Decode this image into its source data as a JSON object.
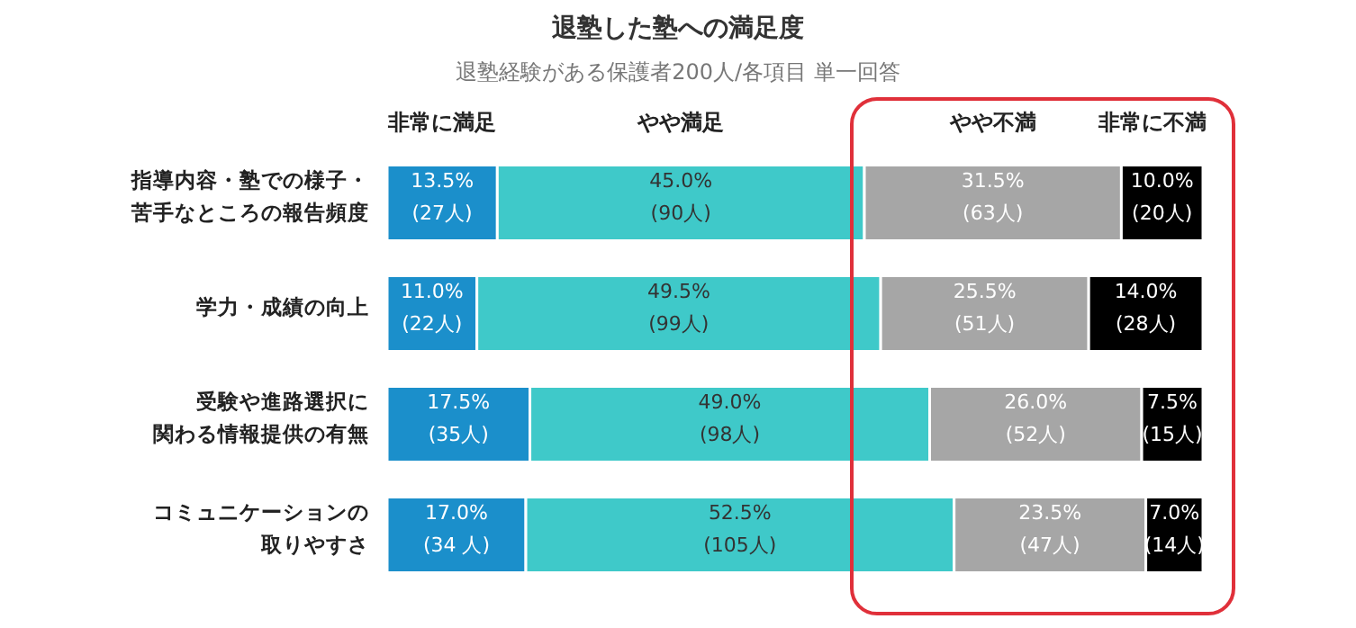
{
  "chart_data": {
    "type": "bar",
    "orientation": "horizontal",
    "stacked": true,
    "legend": "top",
    "title": "退塾した塾への満足度",
    "subtitle": "退塾経験がある保護者200人/各項目 単一回答",
    "categories": [
      "指導内容・塾での様子・苦手なところの報告頻度",
      "学力・成績の向上",
      "受験や進路選択に関わる情報提供の有無",
      "コミュニケーションの取りやすさ"
    ],
    "series": [
      {
        "name": "非常に満足",
        "color": "#1b8fcb",
        "values": [
          13.5,
          11.0,
          17.5,
          17.0
        ],
        "value_labels": [
          "13.5%\n(27人)",
          "11.0%\n(22人)",
          "17.5%\n(35人)",
          "17.0%\n(34 人)"
        ]
      },
      {
        "name": "やや満足",
        "color": "#3fc9c9",
        "values": [
          45.0,
          49.5,
          49.0,
          52.5
        ],
        "value_labels": [
          "45.0%\n(90人)",
          "49.5%\n(99人)",
          "49.0%\n(98人)",
          "52.5%\n(105人)"
        ]
      },
      {
        "name": "やや不満",
        "color": "#a6a6a6",
        "values": [
          31.5,
          25.5,
          26.0,
          23.5
        ],
        "value_labels": [
          "31.5%\n(63人)",
          "25.5%\n(51人)",
          "26.0%\n(52人)",
          "23.5%\n(47人)"
        ]
      },
      {
        "name": "非常に不満",
        "color": "#000000",
        "values": [
          10.0,
          14.0,
          7.5,
          7.0
        ],
        "value_labels": [
          "10.0%\n(20人)",
          "14.0%\n(28人)",
          "7.5%\n(15人)",
          "7.0%\n(14人)"
        ]
      }
    ]
  }
}
